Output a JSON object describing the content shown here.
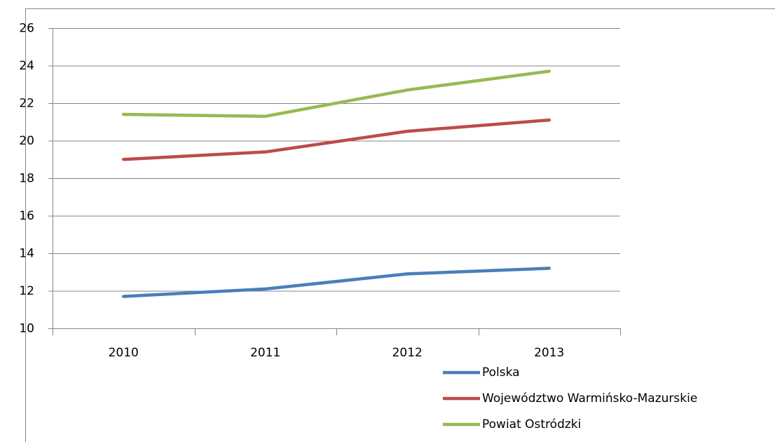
{
  "chart_data": {
    "type": "line",
    "categories": [
      "2010",
      "2011",
      "2012",
      "2013"
    ],
    "series": [
      {
        "name": "Polska",
        "color": "#4a7ebb",
        "values": [
          11.7,
          12.1,
          12.9,
          13.2
        ]
      },
      {
        "name": "Województwo Warmińsko-Mazurskie",
        "color": "#be4b48",
        "values": [
          19.0,
          19.4,
          20.5,
          21.1
        ]
      },
      {
        "name": "Powiat Ostródzki",
        "color": "#98b954",
        "values": [
          21.4,
          21.3,
          22.7,
          23.7
        ]
      }
    ],
    "ylim": [
      10,
      26
    ],
    "yticks": [
      10,
      12,
      14,
      16,
      18,
      20,
      22,
      24,
      26
    ],
    "grid": true,
    "legend": "bottom-right"
  }
}
